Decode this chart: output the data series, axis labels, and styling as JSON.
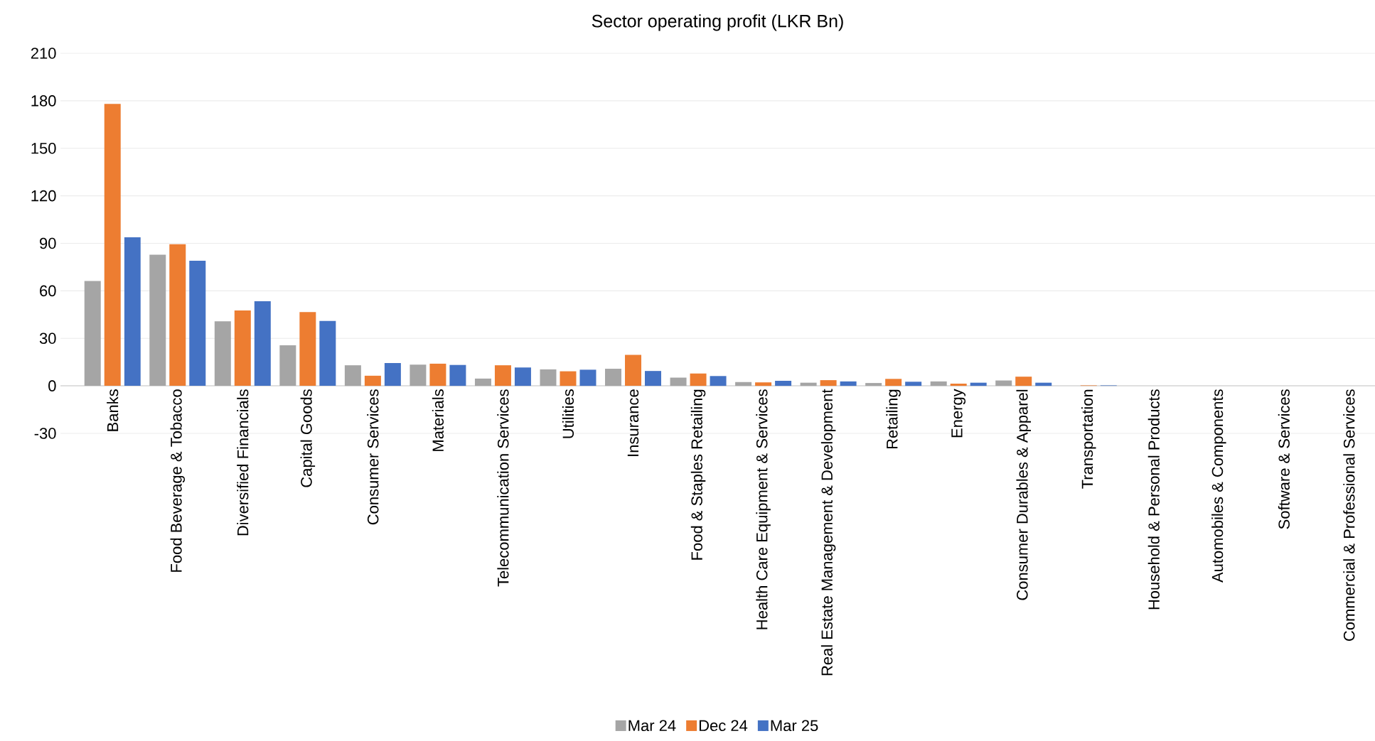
{
  "chart_data": {
    "type": "bar",
    "title": "Sector operating profit (LKR Bn)",
    "categories": [
      "Banks",
      "Food Beverage & Tobacco",
      "Diversified Financials",
      "Capital Goods",
      "Consumer Services",
      "Materials",
      "Telecommunication Services",
      "Utilities",
      "Insurance",
      "Food & Staples Retailing",
      "Health Care Equipment & Services",
      "Real Estate Management & Development",
      "Retailing",
      "Energy",
      "Consumer Durables & Apparel",
      "Transportation",
      "Household & Personal Products",
      "Automobiles & Components",
      "Software & Services",
      "Commercial & Professional Services"
    ],
    "series": [
      {
        "name": "Mar 24",
        "color": "#a5a5a5",
        "values": [
          66.2,
          82.8,
          40.8,
          25.6,
          13,
          13.4,
          4.6,
          10.4,
          10.8,
          5.2,
          2.4,
          2,
          1.8,
          2.8,
          3.4,
          null,
          0,
          0,
          0,
          0
        ]
      },
      {
        "name": "Dec 24",
        "color": "#ed7d31",
        "values": [
          178,
          89.4,
          47.6,
          46.6,
          6.4,
          14,
          13,
          9.2,
          19.6,
          7.8,
          2.2,
          3.6,
          4.4,
          1.4,
          5.8,
          0.3,
          0,
          0,
          0,
          0
        ]
      },
      {
        "name": "Mar 25",
        "color": "#4472c4",
        "values": [
          93.8,
          79,
          53.4,
          41,
          14.4,
          13.2,
          11.6,
          10.2,
          9.4,
          6.2,
          3.2,
          2.8,
          2.6,
          2,
          2,
          0.3,
          0,
          0,
          0,
          0
        ]
      }
    ],
    "ylim": [
      -30,
      210
    ],
    "yticks": [
      -30,
      0,
      30,
      60,
      90,
      120,
      150,
      180,
      210
    ],
    "grid": "y",
    "legend": "bottom"
  }
}
